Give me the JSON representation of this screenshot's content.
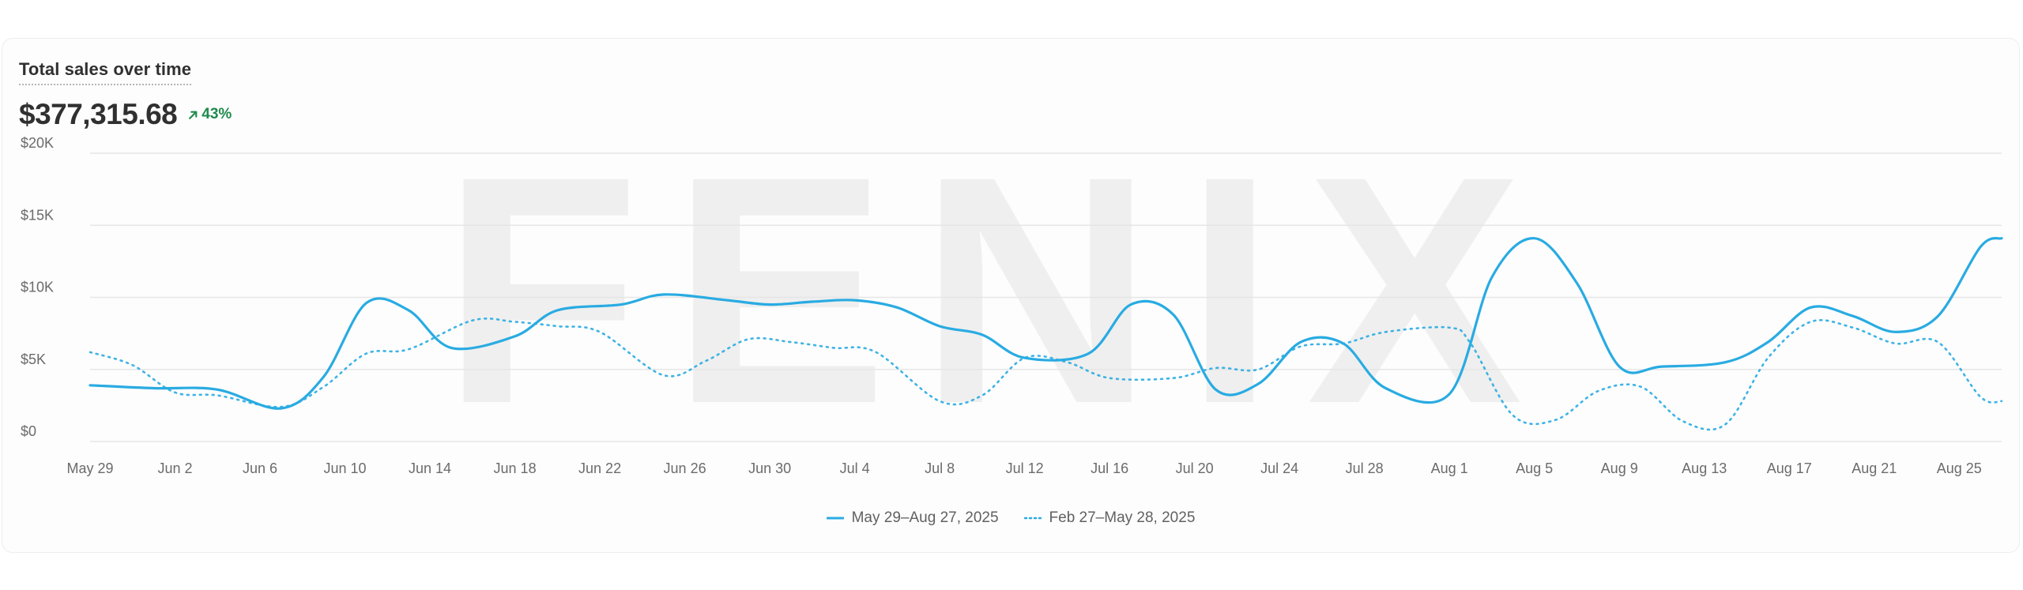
{
  "card": {
    "title": "Total sales over time",
    "total": "$377,315.68",
    "change": "43%",
    "change_direction": "up"
  },
  "watermark": {
    "text": "FENIX"
  },
  "colors": {
    "accent": "#29abe2",
    "positive": "#1f8a4c",
    "grid": "#e6e6e6",
    "axis_text": "#6b6b6b"
  },
  "chart_data": {
    "type": "line",
    "title": "Total sales over time",
    "ylim": [
      0,
      20000
    ],
    "y_ticks": [
      0,
      5000,
      10000,
      15000,
      20000
    ],
    "y_tick_labels": [
      "$0",
      "$5K",
      "$10K",
      "$15K",
      "$20K"
    ],
    "x_range": [
      "2025-05-29",
      "2025-08-27"
    ],
    "x_tick_labels": [
      "May 29",
      "Jun 2",
      "Jun 6",
      "Jun 10",
      "Jun 14",
      "Jun 18",
      "Jun 22",
      "Jun 26",
      "Jun 30",
      "Jul 4",
      "Jul 8",
      "Jul 12",
      "Jul 16",
      "Jul 20",
      "Jul 24",
      "Jul 28",
      "Aug 1",
      "Aug 5",
      "Aug 9",
      "Aug 13",
      "Aug 17",
      "Aug 21",
      "Aug 25"
    ],
    "grid": true,
    "legend_position": "bottom-center",
    "series": [
      {
        "name": "May 29–Aug 27, 2025",
        "style": "solid",
        "points": [
          [
            "2025-05-29",
            3900
          ],
          [
            "2025-06-01",
            3700
          ],
          [
            "2025-06-04",
            3600
          ],
          [
            "2025-06-07",
            2300
          ],
          [
            "2025-06-09",
            4500
          ],
          [
            "2025-06-11",
            9600
          ],
          [
            "2025-06-13",
            9100
          ],
          [
            "2025-06-15",
            6500
          ],
          [
            "2025-06-18",
            7300
          ],
          [
            "2025-06-20",
            9100
          ],
          [
            "2025-06-23",
            9500
          ],
          [
            "2025-06-25",
            10200
          ],
          [
            "2025-06-28",
            9800
          ],
          [
            "2025-06-30",
            9500
          ],
          [
            "2025-07-02",
            9700
          ],
          [
            "2025-07-04",
            9800
          ],
          [
            "2025-07-06",
            9300
          ],
          [
            "2025-07-08",
            8000
          ],
          [
            "2025-07-10",
            7400
          ],
          [
            "2025-07-12",
            5800
          ],
          [
            "2025-07-15",
            6100
          ],
          [
            "2025-07-17",
            9500
          ],
          [
            "2025-07-19",
            8800
          ],
          [
            "2025-07-21",
            3600
          ],
          [
            "2025-07-23",
            4000
          ],
          [
            "2025-07-25",
            6900
          ],
          [
            "2025-07-27",
            6800
          ],
          [
            "2025-07-29",
            3700
          ],
          [
            "2025-08-01",
            3300
          ],
          [
            "2025-08-03",
            11400
          ],
          [
            "2025-08-05",
            14100
          ],
          [
            "2025-08-07",
            11000
          ],
          [
            "2025-08-09",
            5200
          ],
          [
            "2025-08-11",
            5200
          ],
          [
            "2025-08-14",
            5500
          ],
          [
            "2025-08-16",
            6900
          ],
          [
            "2025-08-18",
            9300
          ],
          [
            "2025-08-20",
            8700
          ],
          [
            "2025-08-22",
            7600
          ],
          [
            "2025-08-24",
            8700
          ],
          [
            "2025-08-26",
            13500
          ],
          [
            "2025-08-27",
            14100
          ]
        ]
      },
      {
        "name": "Feb 27–May 28, 2025",
        "style": "dotted",
        "points": [
          [
            "2025-05-29",
            6200
          ],
          [
            "2025-05-31",
            5300
          ],
          [
            "2025-06-02",
            3400
          ],
          [
            "2025-06-04",
            3200
          ],
          [
            "2025-06-07",
            2400
          ],
          [
            "2025-06-09",
            3800
          ],
          [
            "2025-06-11",
            6100
          ],
          [
            "2025-06-13",
            6400
          ],
          [
            "2025-06-16",
            8400
          ],
          [
            "2025-06-18",
            8300
          ],
          [
            "2025-06-20",
            8000
          ],
          [
            "2025-06-22",
            7600
          ],
          [
            "2025-06-25",
            4600
          ],
          [
            "2025-06-27",
            5600
          ],
          [
            "2025-06-29",
            7100
          ],
          [
            "2025-07-01",
            6900
          ],
          [
            "2025-07-03",
            6500
          ],
          [
            "2025-07-05",
            6200
          ],
          [
            "2025-07-08",
            2800
          ],
          [
            "2025-07-10",
            3200
          ],
          [
            "2025-07-12",
            5800
          ],
          [
            "2025-07-14",
            5500
          ],
          [
            "2025-07-16",
            4400
          ],
          [
            "2025-07-19",
            4400
          ],
          [
            "2025-07-21",
            5100
          ],
          [
            "2025-07-23",
            5000
          ],
          [
            "2025-07-25",
            6600
          ],
          [
            "2025-07-27",
            6800
          ],
          [
            "2025-07-29",
            7600
          ],
          [
            "2025-08-01",
            7900
          ],
          [
            "2025-08-02",
            6800
          ],
          [
            "2025-08-04",
            1800
          ],
          [
            "2025-08-06",
            1500
          ],
          [
            "2025-08-08",
            3500
          ],
          [
            "2025-08-10",
            3800
          ],
          [
            "2025-08-12",
            1400
          ],
          [
            "2025-08-14",
            1200
          ],
          [
            "2025-08-16",
            5800
          ],
          [
            "2025-08-18",
            8300
          ],
          [
            "2025-08-20",
            7900
          ],
          [
            "2025-08-22",
            6800
          ],
          [
            "2025-08-24",
            6900
          ],
          [
            "2025-08-26",
            3100
          ],
          [
            "2025-08-27",
            2800
          ]
        ]
      }
    ]
  }
}
